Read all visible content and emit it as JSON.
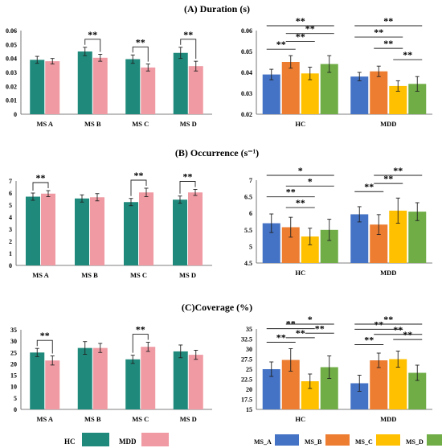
{
  "sections": [
    {
      "label": "(A) Duration (s)"
    },
    {
      "label": "(B)  Occurrence (s⁻¹)"
    },
    {
      "label": "(C)Coverage (%)"
    }
  ],
  "legend_left": [
    {
      "name": "HC",
      "color": "#1f8a7c"
    },
    {
      "name": "MDD",
      "color": "#f09aa3"
    }
  ],
  "legend_right": [
    {
      "name": "MS_A",
      "color": "#4472c4"
    },
    {
      "name": "MS_B",
      "color": "#ed7d31"
    },
    {
      "name": "MS_C",
      "color": "#ffc000"
    },
    {
      "name": "MS_D",
      "color": "#70ad47"
    }
  ],
  "chart_data": [
    {
      "type": "bar",
      "panel": "A-left",
      "categories": [
        "MS A",
        "MS B",
        "MS C",
        "MS D"
      ],
      "series": [
        {
          "name": "HC",
          "color": "#1f8a7c",
          "values": [
            0.039,
            0.045,
            0.0395,
            0.044
          ],
          "errors": [
            0.0025,
            0.003,
            0.003,
            0.004
          ]
        },
        {
          "name": "MDD",
          "color": "#f09aa3",
          "values": [
            0.038,
            0.0405,
            0.0335,
            0.0345
          ],
          "errors": [
            0.002,
            0.0025,
            0.0025,
            0.0035
          ]
        }
      ],
      "ylim": [
        0,
        0.06
      ],
      "yticks": [
        "0",
        "0.01",
        "0.02",
        "0.03",
        "0.04",
        "0.05",
        "0.06"
      ],
      "annotations": [
        {
          "between": [
            "MS B HC",
            "MS B MDD"
          ],
          "text": "**"
        },
        {
          "between": [
            "MS C HC",
            "MS C MDD"
          ],
          "text": "**"
        },
        {
          "between": [
            "MS D HC",
            "MS D MDD"
          ],
          "text": "**"
        }
      ]
    },
    {
      "type": "bar",
      "panel": "A-right",
      "categories": [
        "HC",
        "MDD"
      ],
      "series": [
        {
          "name": "MS_A",
          "color": "#4472c4",
          "values": [
            0.039,
            0.038
          ],
          "errors": [
            0.0025,
            0.002
          ]
        },
        {
          "name": "MS_B",
          "color": "#ed7d31",
          "values": [
            0.045,
            0.0405
          ],
          "errors": [
            0.003,
            0.0025
          ]
        },
        {
          "name": "MS_C",
          "color": "#ffc000",
          "values": [
            0.0395,
            0.0335
          ],
          "errors": [
            0.003,
            0.0025
          ]
        },
        {
          "name": "MS_D",
          "color": "#70ad47",
          "values": [
            0.044,
            0.0345
          ],
          "errors": [
            0.004,
            0.0035
          ]
        }
      ],
      "ylim": [
        0.02,
        0.06
      ],
      "yticks": [
        "0.02",
        "0.03",
        "0.04",
        "0.05",
        "0.06"
      ],
      "annotations": [
        {
          "group": "HC",
          "between": [
            "MS_A",
            "MS_B"
          ],
          "text": "**"
        },
        {
          "group": "HC",
          "between": [
            "MS_B",
            "MS_C"
          ],
          "text": "**"
        },
        {
          "group": "HC",
          "between": [
            "MS_B",
            "MS_D"
          ],
          "text": "**"
        },
        {
          "group": "HC",
          "between": [
            "MS_A",
            "MS_D"
          ],
          "text": "**"
        },
        {
          "group": "MDD",
          "between": [
            "MS_C",
            "MS_D"
          ],
          "text": "**"
        },
        {
          "group": "MDD",
          "between": [
            "MS_B",
            "MS_C"
          ],
          "text": "**"
        },
        {
          "group": "MDD",
          "between": [
            "MS_A",
            "MS_C"
          ],
          "text": "**"
        },
        {
          "group": "MDD",
          "between": [
            "MS_A",
            "MS_D"
          ],
          "text": "**"
        }
      ]
    },
    {
      "type": "bar",
      "panel": "B-left",
      "categories": [
        "MS A",
        "MS B",
        "MS C",
        "MS D"
      ],
      "series": [
        {
          "name": "HC",
          "color": "#1f8a7c",
          "values": [
            5.7,
            5.55,
            5.25,
            5.45
          ],
          "errors": [
            0.3,
            0.3,
            0.3,
            0.3
          ]
        },
        {
          "name": "MDD",
          "color": "#f09aa3",
          "values": [
            5.95,
            5.65,
            6.05,
            6.05
          ],
          "errors": [
            0.25,
            0.3,
            0.35,
            0.25
          ]
        }
      ],
      "ylim": [
        0,
        7
      ],
      "yticks": [
        "0",
        "1",
        "2",
        "3",
        "4",
        "5",
        "6",
        "7"
      ],
      "annotations": [
        {
          "between": [
            "MS A HC",
            "MS A MDD"
          ],
          "text": "**"
        },
        {
          "between": [
            "MS C HC",
            "MS C MDD"
          ],
          "text": "**"
        },
        {
          "between": [
            "MS D HC",
            "MS D MDD"
          ],
          "text": "**"
        }
      ]
    },
    {
      "type": "bar",
      "panel": "B-right",
      "categories": [
        "HC",
        "MDD"
      ],
      "series": [
        {
          "name": "MS_A",
          "color": "#4472c4",
          "values": [
            5.7,
            5.97
          ],
          "errors": [
            0.28,
            0.23
          ]
        },
        {
          "name": "MS_B",
          "color": "#ed7d31",
          "values": [
            5.58,
            5.66
          ],
          "errors": [
            0.3,
            0.3
          ]
        },
        {
          "name": "MS_C",
          "color": "#ffc000",
          "values": [
            5.3,
            6.08
          ],
          "errors": [
            0.25,
            0.38
          ]
        },
        {
          "name": "MS_D",
          "color": "#70ad47",
          "values": [
            5.5,
            6.05
          ],
          "errors": [
            0.32,
            0.27
          ]
        }
      ],
      "ylim": [
        4.5,
        7
      ],
      "yticks": [
        "4.5",
        "5",
        "5.5",
        "6",
        "6.5",
        "7"
      ],
      "annotations": [
        {
          "group": "HC",
          "between": [
            "MS_B",
            "MS_C"
          ],
          "text": "**"
        },
        {
          "group": "HC",
          "between": [
            "MS_A",
            "MS_C"
          ],
          "text": "**"
        },
        {
          "group": "HC",
          "between": [
            "MS_B",
            "MS_D"
          ],
          "text": "*"
        },
        {
          "group": "HC",
          "between": [
            "MS_A",
            "MS_D"
          ],
          "text": "*"
        },
        {
          "group": "MDD",
          "between": [
            "MS_A",
            "MS_B"
          ],
          "text": "**"
        },
        {
          "group": "MDD",
          "between": [
            "MS_B",
            "MS_C"
          ],
          "text": "**"
        },
        {
          "group": "MDD",
          "between": [
            "MS_B",
            "MS_D"
          ],
          "text": "**"
        }
      ]
    },
    {
      "type": "bar",
      "panel": "C-left",
      "categories": [
        "MS A",
        "MS B",
        "MS C",
        "MS D"
      ],
      "series": [
        {
          "name": "HC",
          "color": "#1f8a7c",
          "values": [
            25,
            27,
            22,
            25.5
          ],
          "errors": [
            1.8,
            2.8,
            1.8,
            2.8
          ]
        },
        {
          "name": "MDD",
          "color": "#f09aa3",
          "values": [
            21.5,
            27,
            27.5,
            24
          ],
          "errors": [
            2.0,
            2.0,
            2.0,
            2.0
          ]
        }
      ],
      "ylim": [
        0,
        35
      ],
      "yticks": [
        "0",
        "5",
        "10",
        "15",
        "20",
        "25",
        "30",
        "35"
      ],
      "annotations": [
        {
          "between": [
            "MS A HC",
            "MS A MDD"
          ],
          "text": "**"
        },
        {
          "between": [
            "MS C HC",
            "MS C MDD"
          ],
          "text": "**"
        }
      ]
    },
    {
      "type": "bar",
      "panel": "C-right",
      "categories": [
        "HC",
        "MDD"
      ],
      "series": [
        {
          "name": "MS_A",
          "color": "#4472c4",
          "values": [
            25,
            21.5
          ],
          "errors": [
            1.8,
            2.0
          ]
        },
        {
          "name": "MS_B",
          "color": "#ed7d31",
          "values": [
            27.3,
            27.2
          ],
          "errors": [
            2.8,
            1.8
          ]
        },
        {
          "name": "MS_C",
          "color": "#ffc000",
          "values": [
            22,
            27.5
          ],
          "errors": [
            1.8,
            2.0
          ]
        },
        {
          "name": "MS_D",
          "color": "#70ad47",
          "values": [
            25.5,
            24.1
          ],
          "errors": [
            2.8,
            1.9
          ]
        }
      ],
      "ylim": [
        15,
        35
      ],
      "yticks": [
        "15",
        "17.5",
        "20",
        "22.5",
        "25",
        "27.5",
        "30",
        "32.5",
        "35"
      ],
      "annotations": [
        {
          "group": "HC",
          "between": [
            "MS_A",
            "MS_B"
          ],
          "text": "**"
        },
        {
          "group": "HC",
          "between": [
            "MS_B",
            "MS_C"
          ],
          "text": "**"
        },
        {
          "group": "HC",
          "between": [
            "MS_C",
            "MS_D"
          ],
          "text": "**"
        },
        {
          "group": "HC",
          "between": [
            "MS_A",
            "MS_C"
          ],
          "text": "**"
        },
        {
          "group": "HC",
          "between": [
            "MS_B",
            "MS_D"
          ],
          "text": "*"
        },
        {
          "group": "MDD",
          "between": [
            "MS_A",
            "MS_B"
          ],
          "text": "**"
        },
        {
          "group": "MDD",
          "between": [
            "MS_C",
            "MS_D"
          ],
          "text": "**"
        },
        {
          "group": "MDD",
          "between": [
            "MS_B",
            "MS_D"
          ],
          "text": "**"
        },
        {
          "group": "MDD",
          "between": [
            "MS_A",
            "MS_C"
          ],
          "text": "**"
        },
        {
          "group": "MDD",
          "between": [
            "MS_A",
            "MS_D"
          ],
          "text": "**"
        }
      ]
    }
  ]
}
